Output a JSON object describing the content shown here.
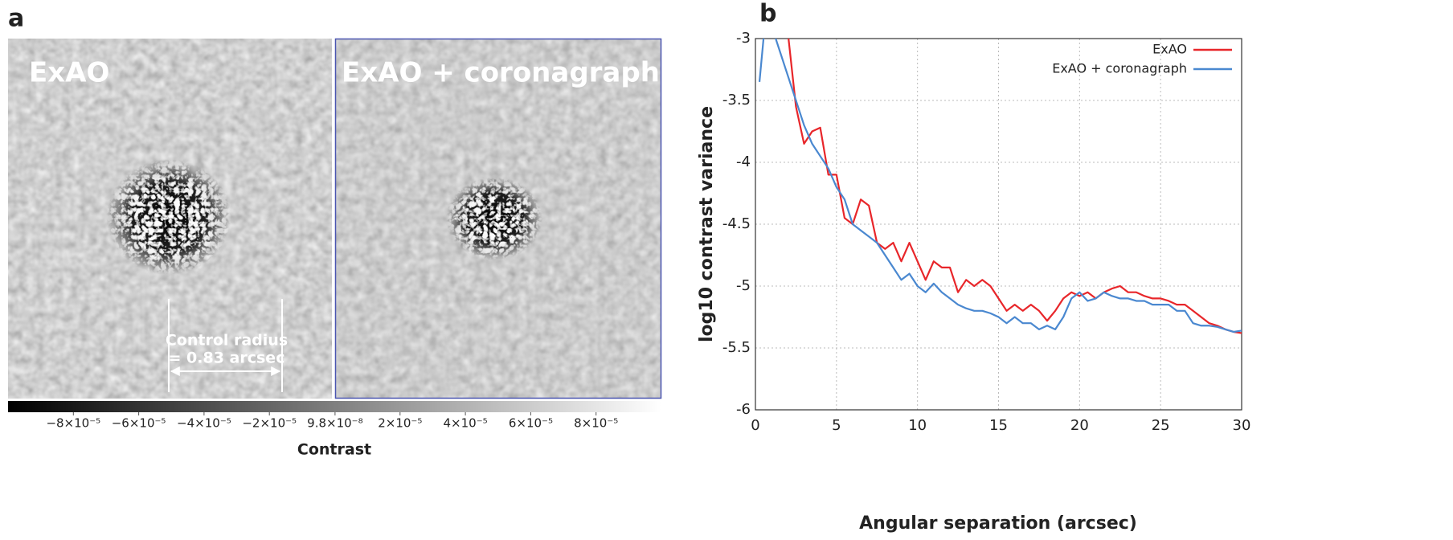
{
  "chart_data": [
    {
      "type": "image",
      "panel_label": "a",
      "titles": [
        "ExAO",
        "ExAO + coronagraph"
      ],
      "annotation": [
        "Control radius",
        "= 0.83 arcsec"
      ],
      "colorbar_label": "Contrast",
      "clim": [
        -0.0001,
        0.0001
      ],
      "cticks": [
        {
          "value": -8e-05,
          "label": "−8×10⁻⁵"
        },
        {
          "value": -6e-05,
          "label": "−6×10⁻⁵"
        },
        {
          "value": -4e-05,
          "label": "−4×10⁻⁵"
        },
        {
          "value": -2e-05,
          "label": "−2×10⁻⁵"
        },
        {
          "value": 9.8e-08,
          "label": "9.8×10⁻⁸"
        },
        {
          "value": 2e-05,
          "label": "2×10⁻⁵"
        },
        {
          "value": 4e-05,
          "label": "4×10⁻⁵"
        },
        {
          "value": 6e-05,
          "label": "6×10⁻⁵"
        },
        {
          "value": 8e-05,
          "label": "8×10⁻⁵"
        }
      ]
    },
    {
      "type": "line",
      "panel_label": "b",
      "xlabel": "Angular separation (arcsec)",
      "ylabel": "log10 contrast variance",
      "xlim": [
        0,
        30
      ],
      "ylim": [
        -6,
        -3
      ],
      "xticks": [
        0,
        5,
        10,
        15,
        20,
        25,
        30
      ],
      "yticks": [
        -6,
        -5.5,
        -5,
        -4.5,
        -4,
        -3.5,
        -3
      ],
      "grid": true,
      "legend": "upper right",
      "x": [
        0.25,
        0.5,
        1,
        1.5,
        2,
        2.5,
        3,
        3.5,
        4,
        4.5,
        5,
        5.5,
        6,
        6.5,
        7,
        7.5,
        8,
        8.5,
        9,
        9.5,
        10,
        10.5,
        11,
        11.5,
        12,
        12.5,
        13,
        13.5,
        14,
        14.5,
        15,
        15.5,
        16,
        16.5,
        17,
        17.5,
        18,
        18.5,
        19,
        19.5,
        20,
        20.5,
        21,
        21.5,
        22,
        22.5,
        23,
        23.5,
        24,
        24.5,
        25,
        25.5,
        26,
        26.5,
        27,
        27.5,
        28,
        28.5,
        29,
        29.5,
        30
      ],
      "series": [
        {
          "name": "ExAO",
          "color": "#e8262a",
          "values": [
            null,
            null,
            null,
            null,
            -2.95,
            -3.55,
            -3.85,
            -3.75,
            -3.72,
            -4.1,
            -4.1,
            -4.45,
            -4.5,
            -4.3,
            -4.35,
            -4.65,
            -4.7,
            -4.65,
            -4.8,
            -4.65,
            -4.8,
            -4.95,
            -4.8,
            -4.85,
            -4.85,
            -5.05,
            -4.95,
            -5.0,
            -4.95,
            -5.0,
            -5.1,
            -5.2,
            -5.15,
            -5.2,
            -5.15,
            -5.2,
            -5.28,
            -5.2,
            -5.1,
            -5.05,
            -5.08,
            -5.05,
            -5.1,
            -5.05,
            -5.02,
            -5.0,
            -5.05,
            -5.05,
            -5.08,
            -5.1,
            -5.1,
            -5.12,
            -5.15,
            -5.15,
            -5.2,
            -5.25,
            -5.3,
            -5.32,
            -5.35,
            -5.37,
            -5.38
          ]
        },
        {
          "name": "ExAO + coronagraph",
          "color": "#4a88d0",
          "values": [
            -3.35,
            -3.0,
            -2.9,
            -3.1,
            -3.3,
            -3.5,
            -3.7,
            -3.85,
            -3.95,
            -4.05,
            -4.2,
            -4.3,
            -4.5,
            -4.55,
            -4.6,
            -4.65,
            -4.75,
            -4.85,
            -4.95,
            -4.9,
            -5.0,
            -5.05,
            -4.98,
            -5.05,
            -5.1,
            -5.15,
            -5.18,
            -5.2,
            -5.2,
            -5.22,
            -5.25,
            -5.3,
            -5.25,
            -5.3,
            -5.3,
            -5.35,
            -5.32,
            -5.35,
            -5.25,
            -5.1,
            -5.05,
            -5.12,
            -5.1,
            -5.05,
            -5.08,
            -5.1,
            -5.1,
            -5.12,
            -5.12,
            -5.15,
            -5.15,
            -5.15,
            -5.2,
            -5.2,
            -5.3,
            -5.32,
            -5.32,
            -5.33,
            -5.35,
            -5.37,
            -5.36
          ]
        }
      ]
    }
  ]
}
